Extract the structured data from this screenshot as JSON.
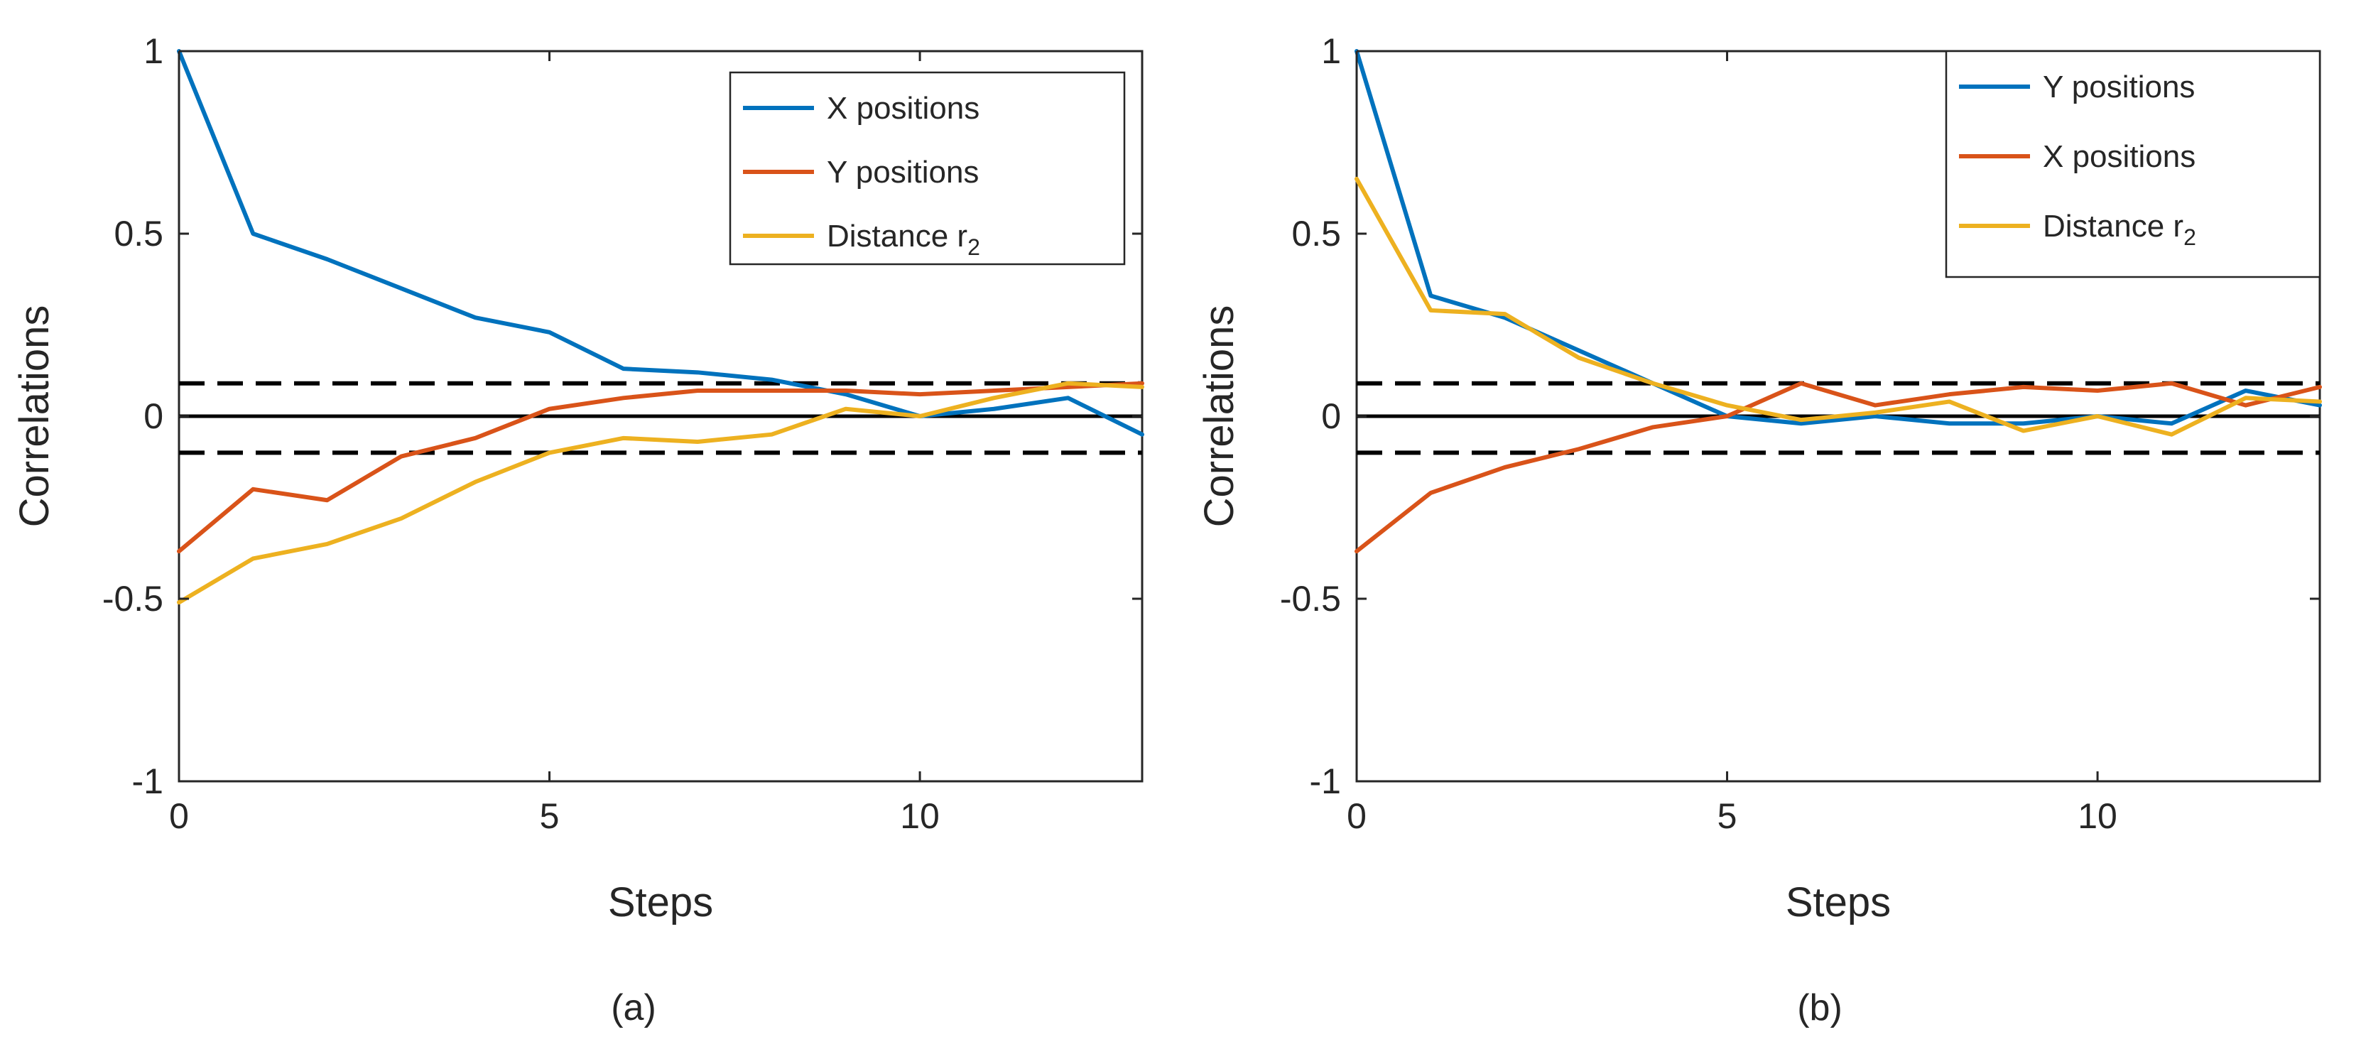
{
  "chart_data": [
    {
      "type": "line",
      "caption": "(a)",
      "xlabel": "Steps",
      "ylabel": "Correlations",
      "xlim": [
        0,
        13
      ],
      "ylim": [
        -1,
        1
      ],
      "xticks": [
        0,
        5,
        10
      ],
      "yticks": [
        -1,
        -0.5,
        0,
        0.5,
        1
      ],
      "xtick_labels": [
        "0",
        "5",
        "10"
      ],
      "ytick_labels": [
        "-1",
        "-0.5",
        "0",
        "0.5",
        "1"
      ],
      "grid": false,
      "legend_position": "top-right",
      "x": [
        0,
        1,
        2,
        3,
        4,
        5,
        6,
        7,
        8,
        9,
        10,
        11,
        12,
        13
      ],
      "series": [
        {
          "name": "X positions",
          "legend_main": "X positions",
          "legend_sub": "",
          "color": "#0072BD",
          "values": [
            1.0,
            0.5,
            0.43,
            0.35,
            0.27,
            0.23,
            0.13,
            0.12,
            0.1,
            0.06,
            0.0,
            0.02,
            0.05,
            -0.05
          ]
        },
        {
          "name": "Y positions",
          "legend_main": "Y positions",
          "legend_sub": "",
          "color": "#D95319",
          "values": [
            -0.37,
            -0.2,
            -0.23,
            -0.11,
            -0.06,
            0.02,
            0.05,
            0.07,
            0.07,
            0.07,
            0.06,
            0.07,
            0.08,
            0.09
          ]
        },
        {
          "name": "Distance r2",
          "legend_main": "Distance r",
          "legend_sub": "2",
          "color": "#EDB120",
          "values": [
            -0.51,
            -0.39,
            -0.35,
            -0.28,
            -0.18,
            -0.1,
            -0.06,
            -0.07,
            -0.05,
            0.02,
            0.0,
            0.05,
            0.09,
            0.08
          ]
        }
      ],
      "reference_lines": [
        {
          "y": 0,
          "style": "solid",
          "color": "#000000"
        },
        {
          "y": 0.09,
          "style": "dashed",
          "color": "#000000"
        },
        {
          "y": -0.1,
          "style": "dashed",
          "color": "#000000"
        }
      ]
    },
    {
      "type": "line",
      "caption": "(b)",
      "xlabel": "Steps",
      "ylabel": "Correlations",
      "xlim": [
        0,
        13
      ],
      "ylim": [
        -1,
        1
      ],
      "xticks": [
        0,
        5,
        10
      ],
      "yticks": [
        -1,
        -0.5,
        0,
        0.5,
        1
      ],
      "xtick_labels": [
        "0",
        "5",
        "10"
      ],
      "ytick_labels": [
        "-1",
        "-0.5",
        "0",
        "0.5",
        "1"
      ],
      "grid": false,
      "legend_position": "top-right",
      "x": [
        0,
        1,
        2,
        3,
        4,
        5,
        6,
        7,
        8,
        9,
        10,
        11,
        12,
        13
      ],
      "series": [
        {
          "name": "Y positions",
          "legend_main": "Y positions",
          "legend_sub": "",
          "color": "#0072BD",
          "values": [
            1.0,
            0.33,
            0.27,
            0.18,
            0.09,
            0.0,
            -0.02,
            0.0,
            -0.02,
            -0.02,
            0.0,
            -0.02,
            0.07,
            0.03
          ]
        },
        {
          "name": "X positions",
          "legend_main": "X positions",
          "legend_sub": "",
          "color": "#D95319",
          "values": [
            -0.37,
            -0.21,
            -0.14,
            -0.09,
            -0.03,
            0.0,
            0.09,
            0.03,
            0.06,
            0.08,
            0.07,
            0.09,
            0.03,
            0.08
          ]
        },
        {
          "name": "Distance r2",
          "legend_main": "Distance r",
          "legend_sub": "2",
          "color": "#EDB120",
          "values": [
            0.65,
            0.29,
            0.28,
            0.16,
            0.09,
            0.03,
            -0.01,
            0.01,
            0.04,
            -0.04,
            0.0,
            -0.05,
            0.05,
            0.04
          ]
        }
      ],
      "reference_lines": [
        {
          "y": 0,
          "style": "solid",
          "color": "#000000"
        },
        {
          "y": 0.09,
          "style": "dashed",
          "color": "#000000"
        },
        {
          "y": -0.1,
          "style": "dashed",
          "color": "#000000"
        }
      ]
    }
  ]
}
